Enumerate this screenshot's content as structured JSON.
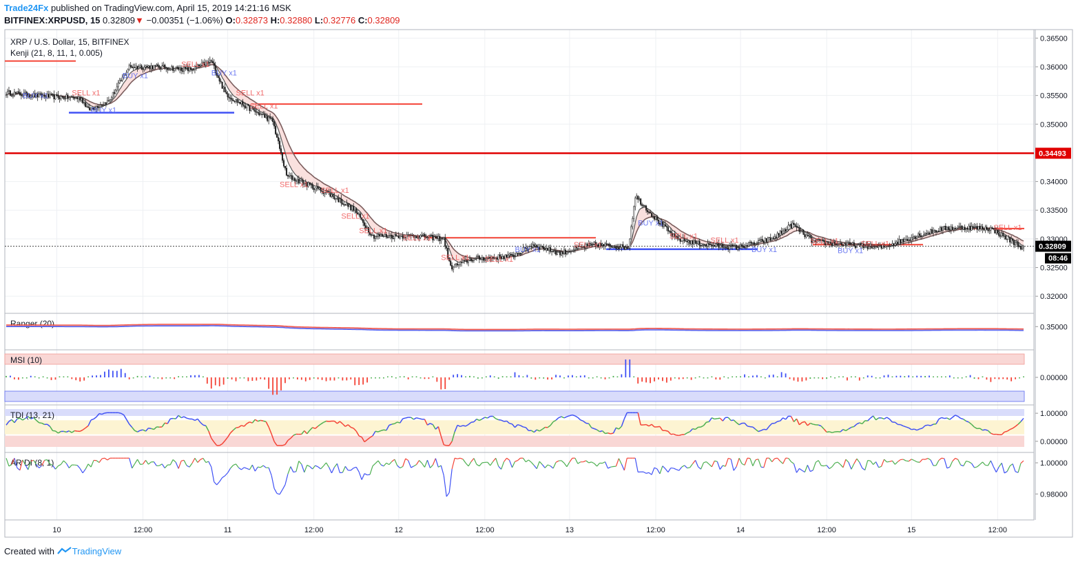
{
  "header": {
    "publisher": "Trade24Fx",
    "published_text": "published on TradingView.com, April 15, 2019 14:21:16 MSK",
    "symbol": "BITFINEX:XRPUSD, 15",
    "last": "0.32809",
    "change": "−0.00351 (−1.06%)",
    "ohlc": {
      "o_label": "O:",
      "o": "0.32873",
      "h_label": "H:",
      "h": "0.32880",
      "l_label": "L:",
      "l": "0.32776",
      "c_label": "C:",
      "c": "0.32809"
    }
  },
  "footer": {
    "created_with": "Created with",
    "brand": "TradingView"
  },
  "colors": {
    "up": "#4caf50",
    "down": "#f44336",
    "blue": "#3f51f5",
    "red_line": "#e00000",
    "grid": "#eef0f3",
    "axis": "#787b86"
  },
  "chart_data": [
    {
      "type": "candlestick",
      "title": "XRP / U.S. Dollar, 15, BITFINEX",
      "indicator": "Kenji (21, 8, 11, 1, 0.005)",
      "x_ticks": [
        "10",
        "12:00",
        "11",
        "12:00",
        "12",
        "12:00",
        "13",
        "12:00",
        "14",
        "12:00",
        "15",
        "12:00"
      ],
      "y_ticks": [
        "0.36500",
        "0.36000",
        "0.35500",
        "0.35000",
        "0.34500",
        "0.34000",
        "0.33500",
        "0.33000",
        "0.32500",
        "0.32000"
      ],
      "ylim": [
        0.3175,
        0.366
      ],
      "price_path": [
        [
          0,
          0.3555
        ],
        [
          20,
          0.355
        ],
        [
          55,
          0.3545
        ],
        [
          60,
          0.3525
        ],
        [
          75,
          0.354
        ],
        [
          90,
          0.36
        ],
        [
          110,
          0.36
        ],
        [
          135,
          0.3595
        ],
        [
          150,
          0.361
        ],
        [
          160,
          0.3555
        ],
        [
          165,
          0.3545
        ],
        [
          195,
          0.3505
        ],
        [
          205,
          0.341
        ],
        [
          235,
          0.338
        ],
        [
          255,
          0.335
        ],
        [
          268,
          0.3305
        ],
        [
          300,
          0.3305
        ],
        [
          320,
          0.33
        ],
        [
          325,
          0.325
        ],
        [
          340,
          0.3265
        ],
        [
          370,
          0.327
        ],
        [
          385,
          0.329
        ],
        [
          405,
          0.3275
        ],
        [
          420,
          0.3285
        ],
        [
          430,
          0.329
        ],
        [
          455,
          0.3285
        ],
        [
          460,
          0.3375
        ],
        [
          475,
          0.3335
        ],
        [
          490,
          0.33
        ],
        [
          510,
          0.329
        ],
        [
          535,
          0.3285
        ],
        [
          560,
          0.33
        ],
        [
          575,
          0.3325
        ],
        [
          590,
          0.3295
        ],
        [
          615,
          0.329
        ],
        [
          640,
          0.3285
        ],
        [
          665,
          0.3305
        ],
        [
          685,
          0.3318
        ],
        [
          700,
          0.332
        ],
        [
          720,
          0.3318
        ],
        [
          736,
          0.3295
        ],
        [
          745,
          0.3282
        ]
      ],
      "horizontal_levels": [
        {
          "price": 0.34493,
          "label": "0.34493",
          "color": "#e00000"
        },
        {
          "price": 0.361,
          "color": "#f44336"
        },
        {
          "price": 0.3535,
          "color": "#f44336"
        },
        {
          "price": 0.352,
          "color": "#3f51f5"
        },
        {
          "price": 0.3302,
          "color": "#f44336"
        },
        {
          "price": 0.329,
          "color": "#f44336"
        },
        {
          "price": 0.3282,
          "color": "#3f51f5"
        },
        {
          "price": 0.3318,
          "color": "#f44336"
        }
      ],
      "signals": [
        {
          "t": 12,
          "price": 0.355,
          "text": "BUY x1",
          "side": "buy"
        },
        {
          "t": 48,
          "price": 0.3555,
          "text": "SELL x1",
          "side": "sell"
        },
        {
          "t": 62,
          "price": 0.3525,
          "text": "BUY x1",
          "side": "buy"
        },
        {
          "t": 85,
          "price": 0.3585,
          "text": "BUY x1",
          "side": "buy"
        },
        {
          "t": 128,
          "price": 0.3605,
          "text": "SELL x1",
          "side": "sell"
        },
        {
          "t": 150,
          "price": 0.359,
          "text": "BUY x1",
          "side": "buy"
        },
        {
          "t": 168,
          "price": 0.3555,
          "text": "SELL x1",
          "side": "sell"
        },
        {
          "t": 178,
          "price": 0.3532,
          "text": "SELL x1",
          "side": "sell"
        },
        {
          "t": 200,
          "price": 0.3395,
          "text": "SELL x1",
          "side": "sell"
        },
        {
          "t": 230,
          "price": 0.3385,
          "text": "SELL x1",
          "side": "sell"
        },
        {
          "t": 245,
          "price": 0.334,
          "text": "SELL x1",
          "side": "sell"
        },
        {
          "t": 258,
          "price": 0.3315,
          "text": "SELL x1",
          "side": "sell"
        },
        {
          "t": 290,
          "price": 0.3302,
          "text": "SELL x1",
          "side": "sell"
        },
        {
          "t": 318,
          "price": 0.3268,
          "text": "SELL x1",
          "side": "sell"
        },
        {
          "t": 350,
          "price": 0.3265,
          "text": "SELL x1",
          "side": "sell"
        },
        {
          "t": 372,
          "price": 0.3282,
          "text": "BUY x1",
          "side": "buy"
        },
        {
          "t": 415,
          "price": 0.329,
          "text": "SELL x1",
          "side": "sell"
        },
        {
          "t": 462,
          "price": 0.3328,
          "text": "BUY x1",
          "side": "buy"
        },
        {
          "t": 485,
          "price": 0.3305,
          "text": "SELL x1",
          "side": "sell"
        },
        {
          "t": 515,
          "price": 0.3298,
          "text": "SELL x1",
          "side": "sell"
        },
        {
          "t": 545,
          "price": 0.3282,
          "text": "BUY x1",
          "side": "buy"
        },
        {
          "t": 588,
          "price": 0.3297,
          "text": "SELL x1",
          "side": "sell"
        },
        {
          "t": 608,
          "price": 0.328,
          "text": "BUY x1",
          "side": "buy"
        },
        {
          "t": 625,
          "price": 0.3292,
          "text": "SELL x1",
          "side": "sell"
        },
        {
          "t": 722,
          "price": 0.332,
          "text": "SELL x1",
          "side": "sell"
        }
      ]
    },
    {
      "type": "line",
      "indicator": "Ranger (20)",
      "y_ticks": [
        "0.35000"
      ]
    },
    {
      "type": "histogram",
      "indicator": "MSI (10)",
      "y_ticks": [
        "0.00000"
      ]
    },
    {
      "type": "line",
      "indicator": "TDI (13, 21)",
      "y_ticks": [
        "1.00000",
        "0.00000"
      ]
    },
    {
      "type": "line",
      "indicator": "AR DI (8, 1)",
      "y_ticks": [
        "1.00000",
        "0.98000"
      ]
    }
  ],
  "last_price_label": "0.32809",
  "countdown": "08:46"
}
